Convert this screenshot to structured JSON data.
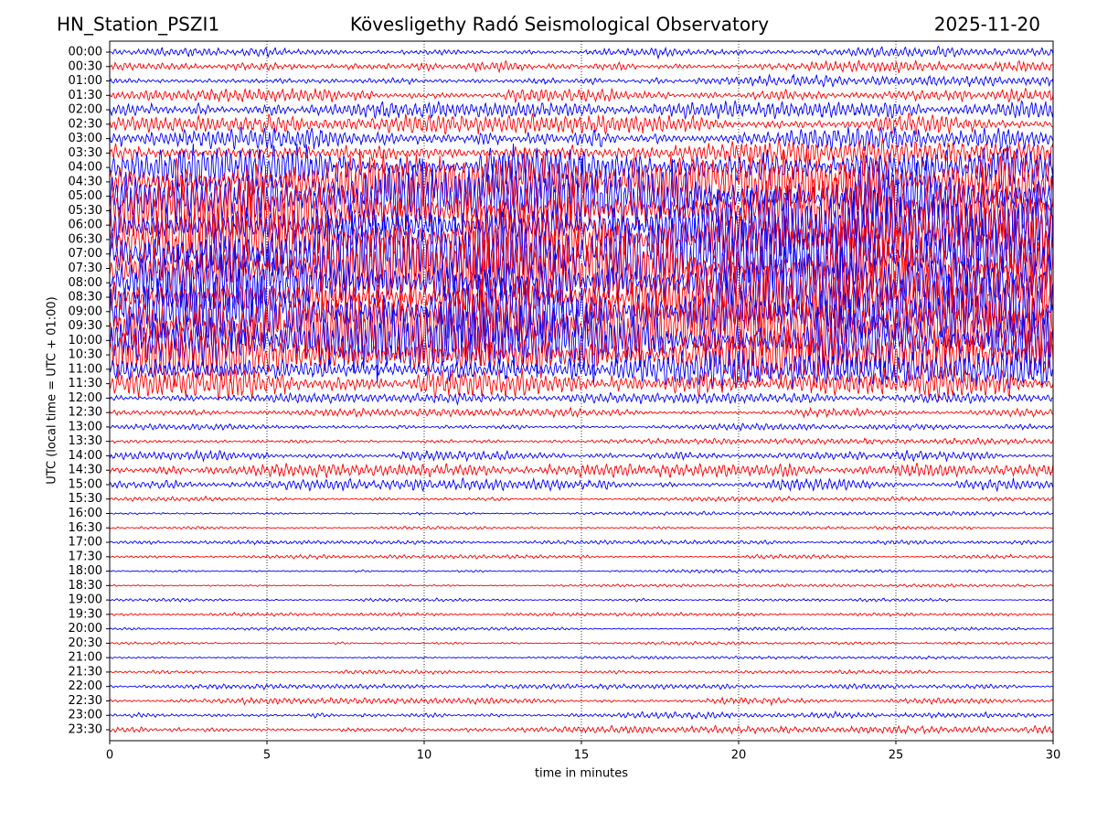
{
  "chart_data": {
    "type": "helicorder",
    "left_title": "HN_Station_PSZI1",
    "title": "Kövesligethy Radó Seismological Observatory",
    "right_title": "2025-11-20",
    "xlabel": "time in minutes",
    "ylabel": "UTC (local time = UTC + 01:00)",
    "xlim": [
      0,
      30
    ],
    "xticks": [
      0,
      5,
      10,
      15,
      20,
      25,
      30
    ],
    "grid": true,
    "colors": [
      "#0000ff",
      "#ff0000"
    ],
    "categories": [
      "00:00",
      "00:30",
      "01:00",
      "01:30",
      "02:00",
      "02:30",
      "03:00",
      "03:30",
      "04:00",
      "04:30",
      "05:00",
      "05:30",
      "06:00",
      "06:30",
      "07:00",
      "07:30",
      "08:00",
      "08:30",
      "09:00",
      "09:30",
      "10:00",
      "10:30",
      "11:00",
      "11:30",
      "12:00",
      "12:30",
      "13:00",
      "13:30",
      "14:00",
      "14:30",
      "15:00",
      "15:30",
      "16:00",
      "16:30",
      "17:00",
      "17:30",
      "18:00",
      "18:30",
      "19:00",
      "19:30",
      "20:00",
      "20:30",
      "21:00",
      "21:30",
      "22:00",
      "22:30",
      "23:00",
      "23:30"
    ],
    "values": [
      0.3,
      0.35,
      0.35,
      0.4,
      0.5,
      0.6,
      0.7,
      0.9,
      1.3,
      1.8,
      2.2,
      2.3,
      2.4,
      2.4,
      2.5,
      2.5,
      2.4,
      2.4,
      2.3,
      2.3,
      2.2,
      1.8,
      1.3,
      0.9,
      0.3,
      0.25,
      0.2,
      0.2,
      0.3,
      0.4,
      0.35,
      0.15,
      0.12,
      0.1,
      0.12,
      0.12,
      0.1,
      0.1,
      0.1,
      0.1,
      0.1,
      0.1,
      0.1,
      0.12,
      0.15,
      0.2,
      0.2,
      0.25
    ]
  }
}
